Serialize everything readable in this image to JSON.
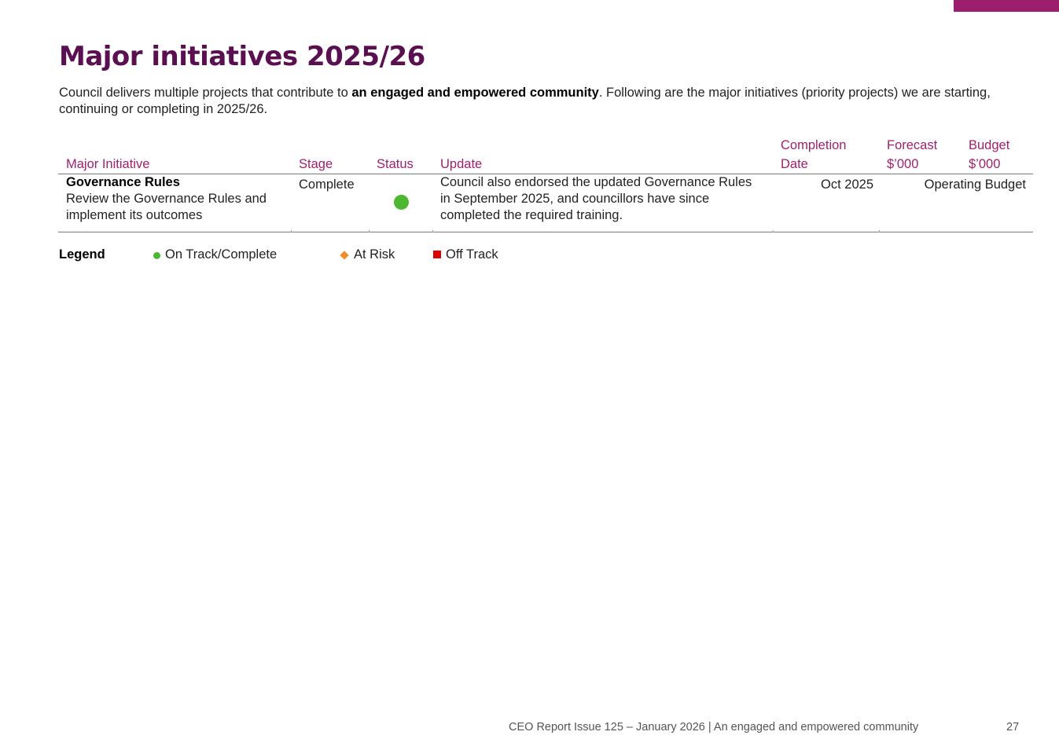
{
  "header": {
    "title": "Major initiatives 2025/26",
    "intro": [
      "Council delivers multiple projects that contribute to ",
      "an engaged and empowered community",
      ". Following are the major initiatives (priority projects) we are starting, continuing or completing in 2025/26."
    ]
  },
  "table": {
    "headers": [
      "Major Initiative",
      "Stage",
      "Status",
      "Update",
      "Completion Date",
      "Forecast $’000",
      "Budget $’000"
    ],
    "rows": [
      {
        "name": "Governance Rules",
        "description": "Review the Governance Rules and implement its outcomes",
        "stage": "Complete",
        "update": "Council also endorsed the updated Governance Rules in September 2025, and councillors have since completed the required training.",
        "completion": "Oct 2025",
        "budget": "Operating Budget"
      }
    ]
  },
  "legend": {
    "title": "Legend",
    "items": [
      "On Track/Complete",
      "At Risk",
      "Off Track"
    ]
  },
  "footer": {
    "text": "CEO Report Issue 125 – January 2026 | An engaged and empowered community",
    "page": "27"
  }
}
